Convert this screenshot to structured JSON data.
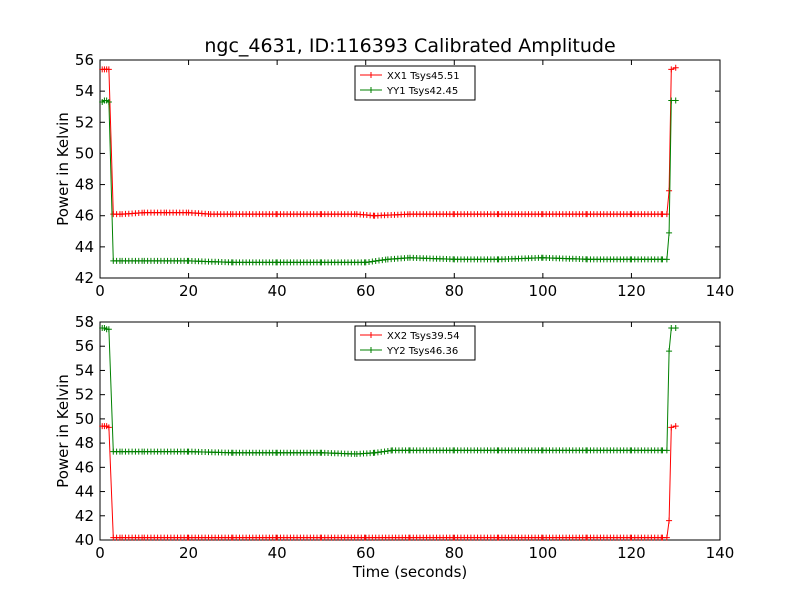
{
  "chart_data": [
    {
      "type": "line",
      "title": "ngc_4631, ID:116393 Calibrated Amplitude",
      "xlabel": "",
      "ylabel": "Power in Kelvin",
      "xlim": [
        0,
        140
      ],
      "ylim": [
        42,
        56
      ],
      "xticks": [
        "0",
        "20",
        "40",
        "60",
        "80",
        "100",
        "120",
        "140"
      ],
      "yticks": [
        "42",
        "44",
        "46",
        "48",
        "50",
        "52",
        "54",
        "56"
      ],
      "grid": false,
      "legend_position": "upper-center",
      "series": [
        {
          "name": "XX1 Tsys45.51",
          "color": "#ff0000",
          "x": [
            0.5,
            1,
            1.5,
            2,
            3,
            5,
            10,
            15,
            20,
            25,
            30,
            40,
            50,
            58,
            62,
            70,
            80,
            90,
            100,
            110,
            120,
            127,
            128,
            128.5,
            129,
            130
          ],
          "y": [
            55.4,
            55.4,
            55.4,
            55.4,
            46.1,
            46.1,
            46.2,
            46.2,
            46.2,
            46.1,
            46.1,
            46.1,
            46.1,
            46.1,
            46.0,
            46.1,
            46.1,
            46.1,
            46.1,
            46.1,
            46.1,
            46.1,
            46.1,
            47.6,
            55.4,
            55.5
          ]
        },
        {
          "name": "YY1 Tsys42.45",
          "color": "#008000",
          "x": [
            0.5,
            1,
            1.5,
            2,
            3,
            5,
            10,
            20,
            30,
            40,
            50,
            60,
            65,
            70,
            80,
            90,
            100,
            110,
            120,
            127,
            128,
            128.5,
            129,
            130
          ],
          "y": [
            53.3,
            53.4,
            53.4,
            53.3,
            43.1,
            43.1,
            43.1,
            43.1,
            43.0,
            43.0,
            43.0,
            43.0,
            43.2,
            43.3,
            43.2,
            43.2,
            43.3,
            43.2,
            43.2,
            43.2,
            43.2,
            44.9,
            53.4,
            53.4
          ]
        }
      ]
    },
    {
      "type": "line",
      "title": "",
      "xlabel": "Time (seconds)",
      "ylabel": "Power in Kelvin",
      "xlim": [
        0,
        140
      ],
      "ylim": [
        40,
        58
      ],
      "xticks": [
        "0",
        "20",
        "40",
        "60",
        "80",
        "100",
        "120",
        "140"
      ],
      "yticks": [
        "40",
        "42",
        "44",
        "46",
        "48",
        "50",
        "52",
        "54",
        "56",
        "58"
      ],
      "grid": false,
      "legend_position": "upper-center",
      "series": [
        {
          "name": "XX2 Tsys39.54",
          "color": "#ff0000",
          "x": [
            0.5,
            1,
            1.5,
            2,
            3,
            5,
            10,
            20,
            30,
            40,
            50,
            60,
            70,
            80,
            90,
            100,
            110,
            120,
            127,
            128,
            128.5,
            129,
            130
          ],
          "y": [
            49.4,
            49.4,
            49.4,
            49.3,
            40.2,
            40.2,
            40.2,
            40.2,
            40.2,
            40.2,
            40.2,
            40.2,
            40.2,
            40.2,
            40.2,
            40.2,
            40.2,
            40.2,
            40.2,
            40.2,
            41.6,
            49.3,
            49.4
          ]
        },
        {
          "name": "YY2 Tsys46.36",
          "color": "#008000",
          "x": [
            0.5,
            1,
            1.5,
            2,
            3,
            5,
            10,
            20,
            30,
            40,
            50,
            58,
            62,
            66,
            70,
            80,
            90,
            100,
            110,
            120,
            127,
            128,
            128.5,
            129,
            130
          ],
          "y": [
            57.5,
            57.5,
            57.4,
            57.4,
            47.3,
            47.3,
            47.3,
            47.3,
            47.2,
            47.2,
            47.2,
            47.1,
            47.2,
            47.4,
            47.4,
            47.4,
            47.4,
            47.4,
            47.4,
            47.4,
            47.4,
            47.4,
            55.6,
            57.5,
            57.5
          ]
        }
      ]
    }
  ]
}
